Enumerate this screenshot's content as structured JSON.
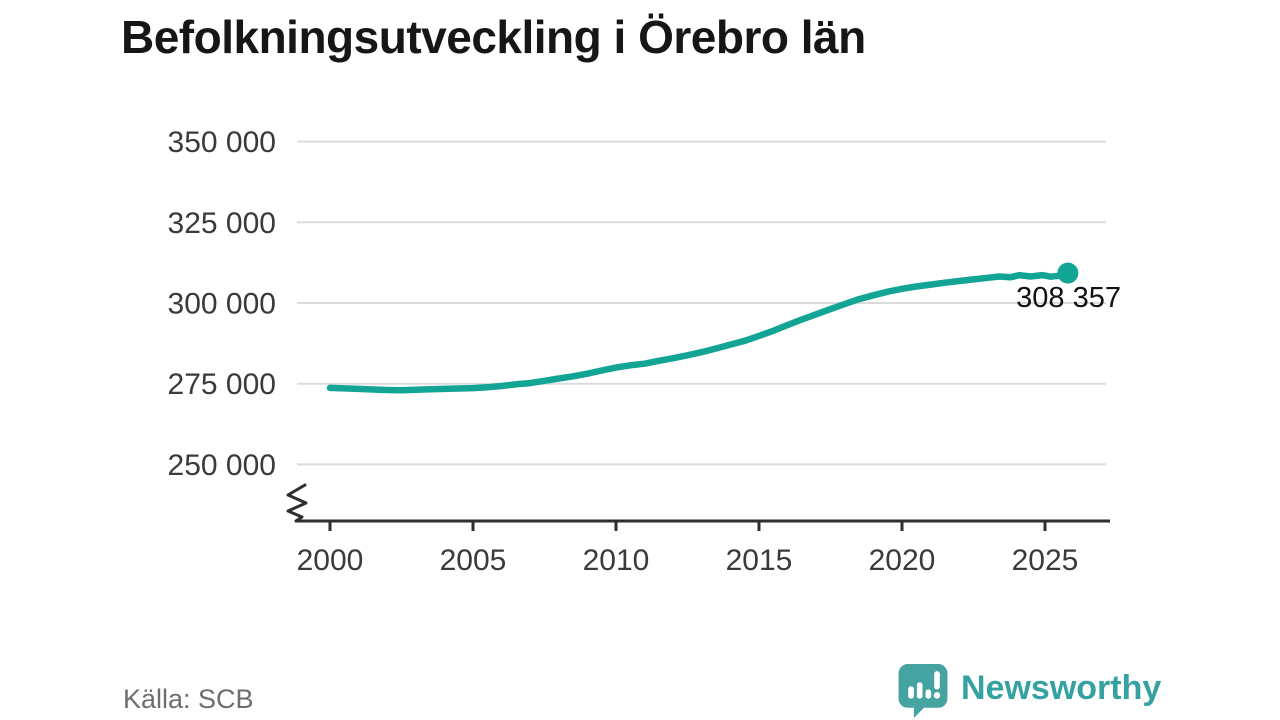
{
  "header": {
    "title": "Befolkningsutveckling i Örebro län"
  },
  "footer": {
    "source": "Källa: SCB",
    "brand": "Newsworthy"
  },
  "chart_data": {
    "type": "line",
    "title": "Befolkningsutveckling i Örebro län",
    "xlabel": "",
    "ylabel": "",
    "x_ticks": [
      2000,
      2005,
      2010,
      2015,
      2020,
      2025
    ],
    "x_tick_labels": [
      "2000",
      "2005",
      "2010",
      "2015",
      "2020",
      "2025"
    ],
    "y_ticks": [
      350000,
      325000,
      300000,
      275000,
      250000
    ],
    "y_tick_labels": [
      "350 000",
      "325 000",
      "300 000",
      "275 000",
      "250 000"
    ],
    "xlim": [
      1998.8,
      2027.3
    ],
    "ylim": [
      236000,
      360000
    ],
    "axis_break": true,
    "grid": "horizontal",
    "legend": "none",
    "series": [
      {
        "name": "Befolkning i Örebro län",
        "points": [
          [
            2000,
            273700
          ],
          [
            2000.5,
            273550
          ],
          [
            2001,
            273400
          ],
          [
            2001.5,
            273200
          ],
          [
            2002,
            273050
          ],
          [
            2002.5,
            273000
          ],
          [
            2003,
            273150
          ],
          [
            2003.5,
            273300
          ],
          [
            2004,
            273400
          ],
          [
            2004.5,
            273500
          ],
          [
            2005,
            273650
          ],
          [
            2005.5,
            273900
          ],
          [
            2006,
            274300
          ],
          [
            2006.5,
            274800
          ],
          [
            2007,
            275200
          ],
          [
            2007.5,
            275900
          ],
          [
            2008,
            276600
          ],
          [
            2008.5,
            277300
          ],
          [
            2009,
            278100
          ],
          [
            2009.5,
            279100
          ],
          [
            2010,
            280000
          ],
          [
            2010.5,
            280700
          ],
          [
            2011,
            281200
          ],
          [
            2011.5,
            282100
          ],
          [
            2012,
            282900
          ],
          [
            2012.5,
            283800
          ],
          [
            2013,
            284800
          ],
          [
            2013.5,
            285900
          ],
          [
            2014,
            287100
          ],
          [
            2014.5,
            288300
          ],
          [
            2015,
            289800
          ],
          [
            2015.5,
            291400
          ],
          [
            2016,
            293200
          ],
          [
            2016.5,
            294900
          ],
          [
            2017,
            296500
          ],
          [
            2017.5,
            298100
          ],
          [
            2018,
            299700
          ],
          [
            2018.5,
            301200
          ],
          [
            2019,
            302400
          ],
          [
            2019.5,
            303500
          ],
          [
            2020,
            304400
          ],
          [
            2020.5,
            305100
          ],
          [
            2021,
            305700
          ],
          [
            2021.5,
            306300
          ],
          [
            2022,
            306800
          ],
          [
            2022.5,
            307300
          ],
          [
            2023,
            307800
          ],
          [
            2023.4,
            308200
          ],
          [
            2023.8,
            308000
          ],
          [
            2024.1,
            308600
          ],
          [
            2024.5,
            308200
          ],
          [
            2024.9,
            308650
          ],
          [
            2025.2,
            308150
          ],
          [
            2025.5,
            308450
          ],
          [
            2025.8,
            308357
          ]
        ]
      }
    ],
    "annotation": {
      "label": "308 357",
      "x": 2025.8,
      "y": 308357
    },
    "colors": {
      "line": "#12a495",
      "marker": "#12a495",
      "grid": "#dbdbdb",
      "axis": "#2e2e2e",
      "tick_text": "#3a3a3a",
      "annotation_text": "#111111"
    }
  },
  "icons": {
    "logo": "newsworthy-speech-bubble-bar-chart",
    "logo_bubble_color": "#45a3a1",
    "logo_glyph_color": "#ffffff"
  }
}
